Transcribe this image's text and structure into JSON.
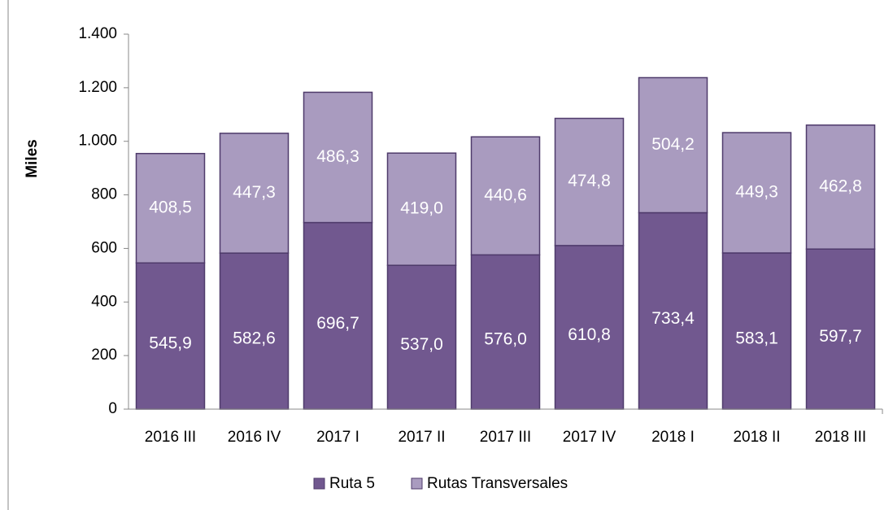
{
  "chart_data": {
    "type": "bar",
    "stacked": true,
    "ylabel": "Miles",
    "categories": [
      "2016 III",
      "2016 IV",
      "2017 I",
      "2017 II",
      "2017 III",
      "2017 IV",
      "2018 I",
      "2018 II",
      "2018 III"
    ],
    "series": [
      {
        "name": "Ruta 5",
        "color": "#71588f",
        "values": [
          545.9,
          582.6,
          696.7,
          537.0,
          576.0,
          610.8,
          733.4,
          583.1,
          597.7
        ],
        "value_labels": [
          "545,9",
          "582,6",
          "696,7",
          "537,0",
          "576,0",
          "610,8",
          "733,4",
          "583,1",
          "597,7"
        ]
      },
      {
        "name": "Rutas Transversales",
        "color": "#a99bbf",
        "values": [
          408.5,
          447.3,
          486.3,
          419.0,
          440.6,
          474.8,
          504.2,
          449.3,
          462.8
        ],
        "value_labels": [
          "408,5",
          "447,3",
          "486,3",
          "419,0",
          "440,6",
          "474,8",
          "504,2",
          "449,3",
          "462,8"
        ]
      }
    ],
    "ylim": [
      0,
      1400
    ],
    "yticks": [
      0,
      200,
      400,
      600,
      800,
      {
        "value": 1000,
        "label": "1.000"
      },
      {
        "value": 1200,
        "label": "1.200"
      },
      {
        "value": 1400,
        "label": "1.400"
      }
    ],
    "grid": false,
    "legend": "bottom"
  }
}
